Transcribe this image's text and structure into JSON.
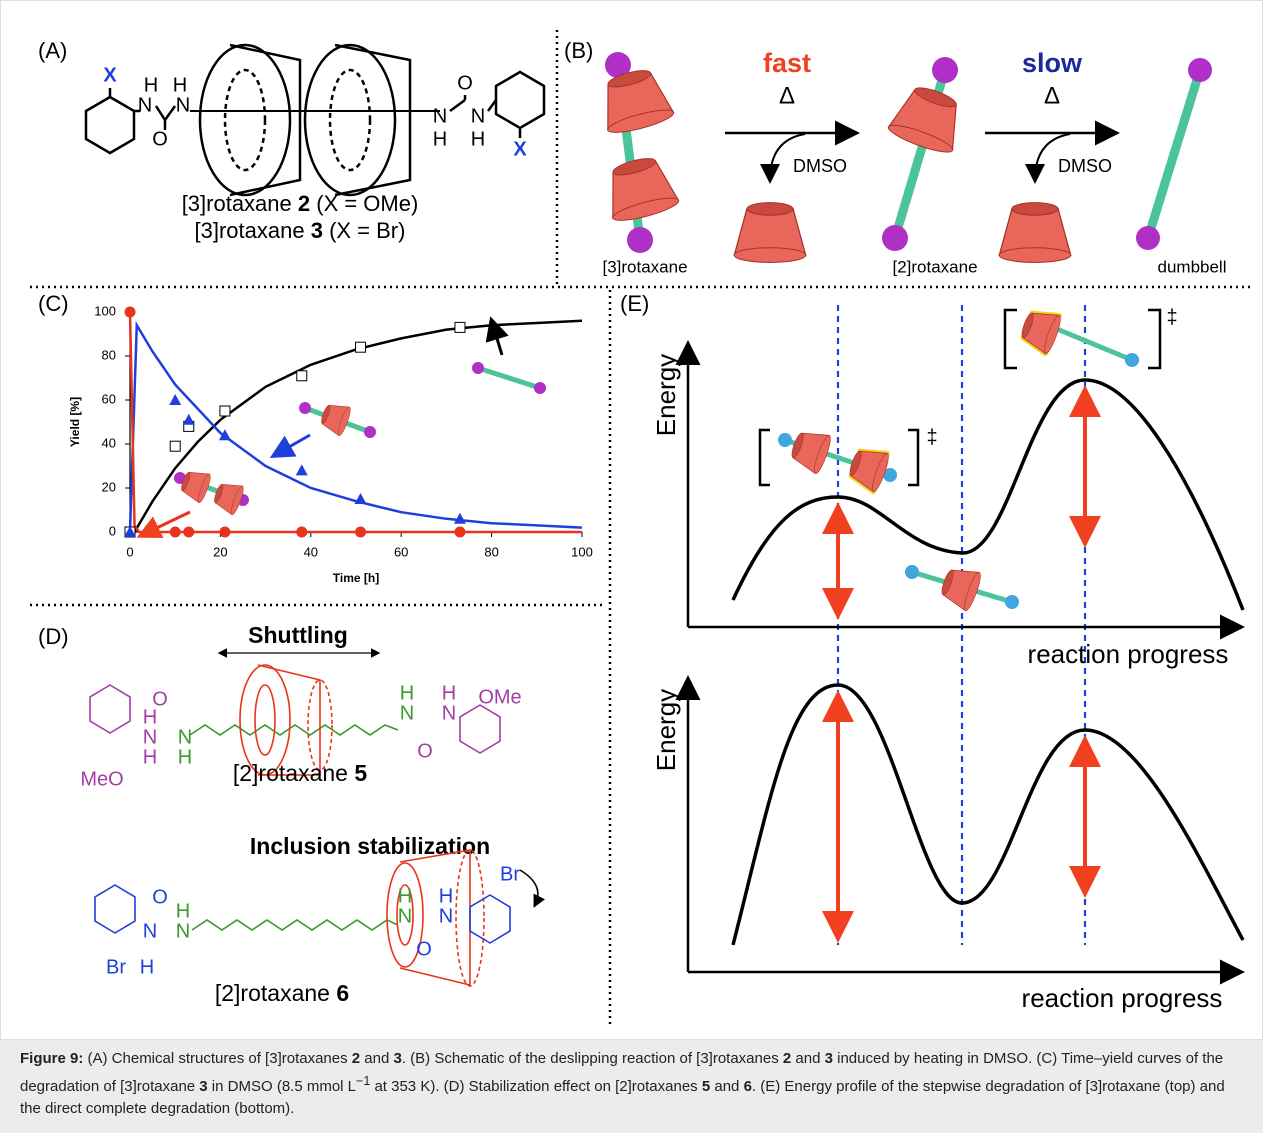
{
  "panel_a": {
    "label": "(A)",
    "atoms": [
      "X",
      "H",
      "N",
      "H",
      "N",
      "O",
      "N",
      "H",
      "O",
      "N",
      "H",
      "X"
    ],
    "compounds": [
      [
        "[3]rotaxane ",
        "2",
        " (X = OMe)"
      ],
      [
        "[3]rotaxane ",
        "3",
        " (X = Br)"
      ]
    ]
  },
  "panel_b": {
    "label": "(B)",
    "fast": "fast",
    "slow": "slow",
    "delta": [
      "Δ",
      "Δ"
    ],
    "solvent": [
      "DMSO",
      "DMSO"
    ],
    "species": [
      "[3]rotaxane",
      "[2]rotaxane",
      "dumbbell"
    ]
  },
  "panel_c": {
    "label": "(C)"
  },
  "chart_data": {
    "type": "scatter",
    "xlabel": "Time [h]",
    "ylabel": "Yield [%]",
    "xlim": [
      0,
      100
    ],
    "ylim": [
      0,
      100
    ],
    "xticks": [
      0,
      20,
      40,
      60,
      80,
      100
    ],
    "yticks": [
      0,
      20,
      40,
      60,
      80,
      100
    ],
    "series": [
      {
        "color": "#000000",
        "marker": "square",
        "x": [
          0,
          10,
          13,
          21,
          38,
          51,
          73
        ],
        "values": [
          0,
          39,
          48,
          55,
          71,
          84,
          93
        ]
      },
      {
        "color": "#1f3fdc",
        "marker": "triangle",
        "x": [
          0,
          10,
          13,
          21,
          38,
          51,
          73
        ],
        "values": [
          0,
          60,
          51,
          44,
          28,
          15,
          6
        ]
      },
      {
        "color": "#e8341c",
        "marker": "circle",
        "x": [
          0,
          10,
          13,
          21,
          38,
          51,
          73
        ],
        "values": [
          100,
          0,
          0,
          0,
          0,
          0,
          0
        ]
      }
    ],
    "fits": [
      {
        "color": "#000000",
        "x": [
          1,
          5,
          10,
          15,
          20,
          30,
          40,
          50,
          60,
          70,
          80,
          90,
          100
        ],
        "values": [
          0,
          14,
          29,
          41,
          51,
          66,
          76,
          83,
          88,
          92,
          94,
          95,
          96
        ]
      },
      {
        "color": "#1f3fdc",
        "x": [
          0,
          1.5,
          5,
          10,
          20,
          30,
          40,
          50,
          60,
          70,
          80,
          90,
          100
        ],
        "values": [
          0,
          94,
          82,
          67,
          45,
          30,
          20,
          14,
          9,
          6,
          4,
          3,
          2
        ]
      },
      {
        "color": "#e8341c",
        "x": [
          0,
          1,
          2,
          100
        ],
        "values": [
          100,
          3,
          0,
          0
        ]
      }
    ]
  },
  "panel_d": {
    "label": "(D)",
    "shuttling": "Shuttling",
    "stabilization": "Inclusion stabilization",
    "atoms_5": [
      "O",
      "H",
      "N",
      "MeO",
      "H",
      "N",
      "H",
      "N",
      "H",
      "O",
      "N",
      "H",
      "OMe"
    ],
    "atoms_6": [
      "O",
      "N",
      "H",
      "Br",
      "H",
      "N",
      "H",
      "N",
      "O",
      "N",
      "H",
      "Br"
    ],
    "compounds": [
      [
        "[2]rotaxane ",
        "5"
      ],
      [
        "[2]rotaxane ",
        "6"
      ]
    ]
  },
  "panel_e": {
    "label": "(E)",
    "y_labels": [
      "Energy",
      "Energy"
    ],
    "x_labels": [
      "reaction progress",
      "reaction progress"
    ],
    "daggers": [
      "‡",
      "‡"
    ]
  },
  "caption": [
    "Figure 9:",
    " (A) Chemical structures of [3]rotaxanes ",
    "2",
    " and ",
    "3",
    ". (B) Schematic of the deslipping reaction of [3]rotaxanes ",
    "2",
    " and ",
    "3",
    " induced by heating in DMSO. (C) Time–yield curves of the degradation of [3]rotaxane ",
    "3",
    " in DMSO (8.5 mmol L",
    "−1",
    " at 353 K). (D) Stabilization effect on [2]rotaxanes ",
    "5",
    " and ",
    "6",
    ". (E) Energy profile of the stepwise degradation of [3]rotaxane (top) and the direct complete degradation (bottom)."
  ]
}
